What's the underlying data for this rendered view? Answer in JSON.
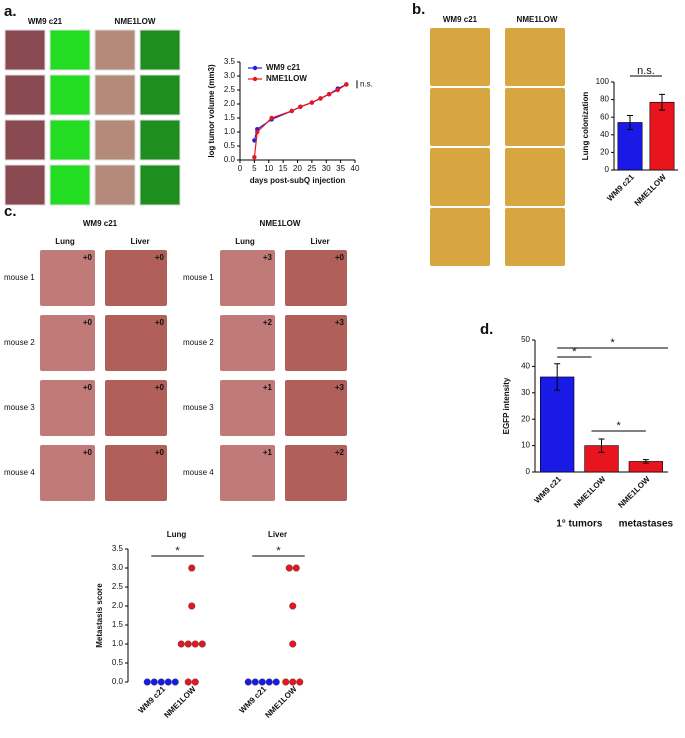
{
  "panels": {
    "a": {
      "label": "a.",
      "columns": [
        "WM9 c21",
        "NME1LOW"
      ]
    },
    "b": {
      "label": "b.",
      "columns": [
        "WM9 c21",
        "NME1LOW"
      ]
    },
    "c": {
      "label": "c.",
      "columns": [
        "WM9 c21",
        "NME1LOW"
      ],
      "organs": [
        "Lung",
        "Liver"
      ],
      "mice": [
        "mouse 1",
        "mouse 2",
        "mouse 3",
        "mouse 4"
      ],
      "scores": [
        [
          "+0",
          "+0",
          "+3",
          "+0"
        ],
        [
          "+0",
          "+0",
          "+2",
          "+3"
        ],
        [
          "+0",
          "+0",
          "+1",
          "+3"
        ],
        [
          "+0",
          "+0",
          "+1",
          "+2"
        ]
      ]
    },
    "d": {
      "label": "d."
    }
  },
  "chart_data": [
    {
      "type": "line",
      "x_label": "days post-subQ injection",
      "y_label": "log tumor volume (mm3)",
      "x": [
        5,
        6,
        11,
        18,
        21,
        25,
        28,
        31,
        34,
        37
      ],
      "series": [
        {
          "name": "WM9 c21",
          "color": "#2020d8",
          "values": [
            0.7,
            1.1,
            1.45,
            1.75,
            1.9,
            2.05,
            2.2,
            2.35,
            2.55,
            2.7
          ]
        },
        {
          "name": "NME1LOW",
          "color": "#e8141e",
          "values": [
            0.1,
            1.0,
            1.5,
            1.75,
            1.9,
            2.05,
            2.2,
            2.35,
            2.5,
            2.7
          ]
        }
      ],
      "xlim": [
        0,
        40
      ],
      "xticks": [
        0,
        5,
        10,
        15,
        20,
        25,
        30,
        35,
        40
      ],
      "ylim": [
        0,
        3.5
      ],
      "yticks": [
        {
          "value": 0,
          "label": "0.0"
        },
        {
          "value": 0.5,
          "label": "0.5"
        },
        {
          "value": 1,
          "label": "1.0"
        },
        {
          "value": 1.5,
          "label": "1.5"
        },
        {
          "value": 2,
          "label": "2.0"
        },
        {
          "value": 2.5,
          "label": "2.5"
        },
        {
          "value": 3,
          "label": "3.0"
        },
        {
          "value": 3.5,
          "label": "3.5"
        }
      ],
      "annotation": "n.s."
    },
    {
      "type": "bar",
      "y_label": "Lung colonization",
      "categories": [
        "WM9 c21",
        "NME1LOW"
      ],
      "values": [
        54,
        77
      ],
      "errors": [
        8,
        9
      ],
      "colors": [
        "#1a1ae6",
        "#e8141e"
      ],
      "ylim": [
        0,
        100
      ],
      "yticks": [
        0,
        20,
        40,
        60,
        80,
        100
      ],
      "annotations": [
        "n.s."
      ]
    },
    {
      "type": "dot",
      "y_label": "Metastasis score",
      "group_labels": [
        "Lung",
        "Liver"
      ],
      "categories": [
        "WM9 c21",
        "NME1LOW",
        "WM9 c21",
        "NME1LOW"
      ],
      "points": [
        [
          0,
          0,
          0,
          0,
          0
        ],
        [
          3,
          2,
          1,
          1,
          1,
          1,
          0,
          0
        ],
        [
          0,
          0,
          0,
          0,
          0
        ],
        [
          3,
          3,
          2,
          1,
          0,
          0,
          0
        ]
      ],
      "colors": [
        "#1a1ae6",
        "#e8141e",
        "#1a1ae6",
        "#e8141e"
      ],
      "ylim": [
        0,
        3.5
      ],
      "yticks": [
        {
          "value": 0,
          "label": "0.0"
        },
        {
          "value": 0.5,
          "label": "0.5"
        },
        {
          "value": 1,
          "label": "1.0"
        },
        {
          "value": 1.5,
          "label": "1.5"
        },
        {
          "value": 2,
          "label": "2.0"
        },
        {
          "value": 2.5,
          "label": "2.5"
        },
        {
          "value": 3,
          "label": "3.0"
        },
        {
          "value": 3.5,
          "label": "3.5"
        }
      ],
      "annotations": [
        "*",
        "*"
      ]
    },
    {
      "type": "bar",
      "y_label": "EGFP intensity",
      "categories": [
        "WM9 c21",
        "NME1LOW",
        "NME1LOW"
      ],
      "group_labels": [
        "1° tumors",
        "metastases"
      ],
      "values": [
        36,
        10,
        4
      ],
      "errors": [
        5,
        2.5,
        0.7
      ],
      "colors": [
        "#1a1ae6",
        "#e8141e",
        "#e8141e"
      ],
      "ylim": [
        0,
        50
      ],
      "yticks": [
        0,
        10,
        20,
        30,
        40,
        50
      ],
      "annotations": [
        "*",
        "*",
        "*"
      ]
    }
  ]
}
